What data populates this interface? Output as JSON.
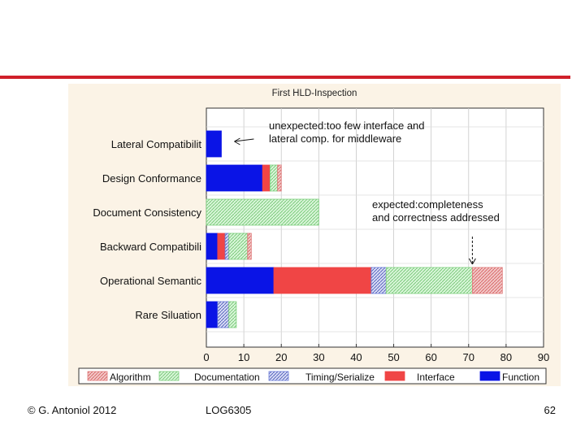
{
  "footer": {
    "copyright": "© G. Antoniol 2012",
    "course": "LOG6305",
    "page_number": "62"
  },
  "chart_data": {
    "type": "bar",
    "orientation": "horizontal",
    "stacked": true,
    "title": "First HLD-Inspection",
    "categories": [
      "Lateral Compatibilit",
      "Design Conformance",
      "Document Consistency",
      "Backward Compatibili",
      "Operational Semantic",
      "Rare Siluation"
    ],
    "series": [
      {
        "name": "Function",
        "color": "#0a14e6",
        "pattern": "solid",
        "values": [
          4,
          15,
          0,
          3,
          18,
          3
        ]
      },
      {
        "name": "Interface",
        "color": "#f04545",
        "pattern": "solid",
        "values": [
          0,
          2,
          0,
          2,
          26,
          0
        ]
      },
      {
        "name": "Timing/Serialize",
        "color": "#6a7ad8",
        "pattern": "hatch",
        "values": [
          0,
          0,
          0,
          1,
          4,
          3
        ]
      },
      {
        "name": "Documentation",
        "color": "#7fd07f",
        "pattern": "hatch",
        "values": [
          0,
          2,
          30,
          5,
          23,
          2
        ]
      },
      {
        "name": "Algorithm",
        "color": "#e07a7a",
        "pattern": "hatch",
        "values": [
          0,
          1,
          0,
          1,
          8,
          0
        ]
      }
    ],
    "xlim": [
      0,
      90
    ],
    "xticks": [
      0,
      10,
      20,
      30,
      40,
      50,
      60,
      70,
      80,
      90
    ],
    "grid": true,
    "legend_position": "bottom",
    "legend_order": [
      "Algorithm",
      "Documentation",
      "Timing/Serialize",
      "Interface",
      "Function"
    ],
    "annotations": [
      {
        "lines": [
          "unexpected:too few interface and",
          "lateral comp. for middleware"
        ],
        "target_category": "Lateral Compatibilit",
        "target_value": 4
      },
      {
        "lines": [
          "expected:completeness",
          "and correctness addressed"
        ],
        "target_category": "Operational Semantic",
        "target_value": 71
      }
    ]
  }
}
